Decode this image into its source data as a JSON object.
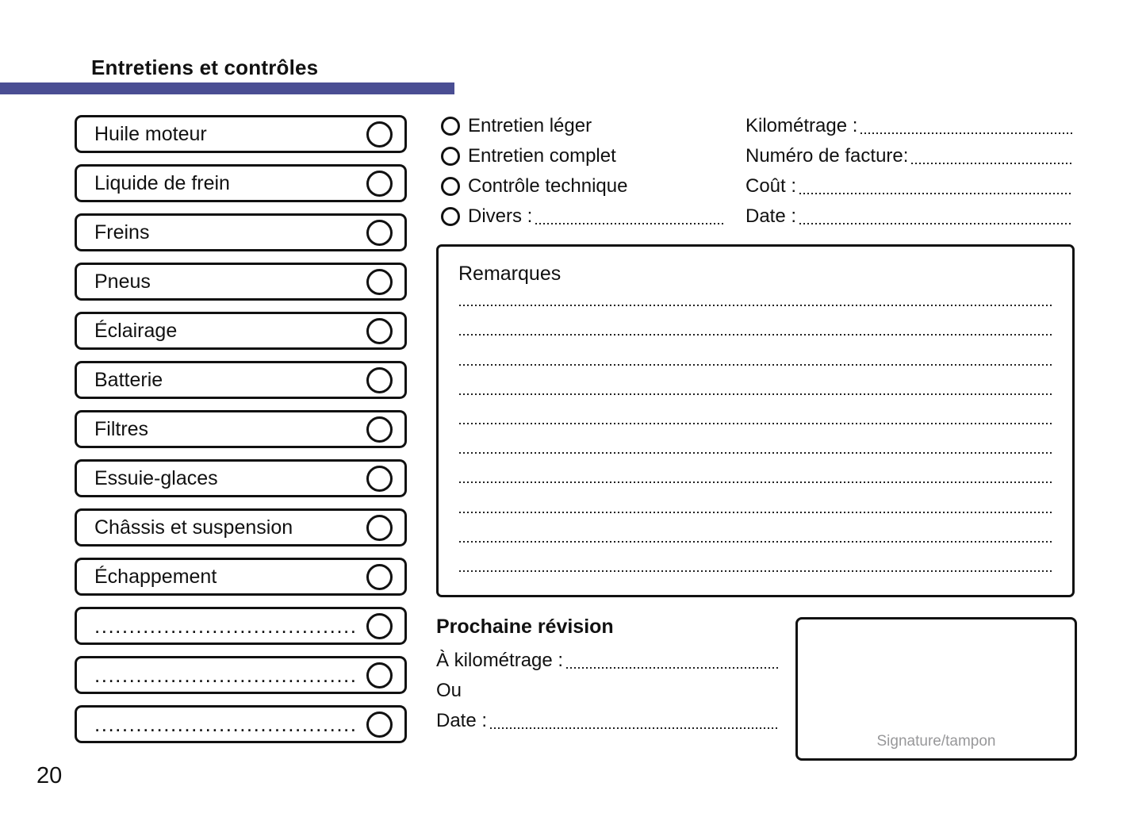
{
  "page": {
    "title": "Entretiens et contrôles",
    "page_number": "20"
  },
  "colors": {
    "accent_bar": "#4a4e93",
    "signature_hint": "#98989a"
  },
  "checklist": {
    "items": [
      {
        "label": "Huile moteur",
        "type": "labeled"
      },
      {
        "label": "Liquide de frein",
        "type": "labeled"
      },
      {
        "label": "Freins",
        "type": "labeled"
      },
      {
        "label": "Pneus",
        "type": "labeled"
      },
      {
        "label": "Éclairage",
        "type": "labeled"
      },
      {
        "label": "Batterie",
        "type": "labeled"
      },
      {
        "label": "Filtres",
        "type": "labeled"
      },
      {
        "label": "Essuie-glaces",
        "type": "labeled"
      },
      {
        "label": "Châssis et suspension",
        "type": "labeled"
      },
      {
        "label": "Échappement",
        "type": "labeled"
      },
      {
        "label": "......................................",
        "type": "write_in"
      },
      {
        "label": "......................................",
        "type": "write_in"
      },
      {
        "label": "......................................",
        "type": "write_in"
      }
    ]
  },
  "service_types": {
    "options": [
      {
        "label": "Entretien léger",
        "leader": false
      },
      {
        "label": "Entretien complet",
        "leader": false
      },
      {
        "label": "Contrôle technique",
        "leader": false
      },
      {
        "label": "Divers :",
        "leader": true
      }
    ]
  },
  "record_fields": {
    "fields": [
      {
        "label": "Kilométrage :"
      },
      {
        "label": "Numéro de facture:"
      },
      {
        "label": "Coût :"
      },
      {
        "label": "Date :"
      }
    ]
  },
  "remarks": {
    "title": "Remarques",
    "line_count": 10
  },
  "next_service": {
    "title": "Prochaine révision",
    "rows": [
      {
        "label": "À kilométrage :",
        "leader": true
      },
      {
        "label": "Ou",
        "leader": false
      },
      {
        "label": "Date :",
        "leader": true
      }
    ]
  },
  "signature": {
    "hint": "Signature/tampon"
  }
}
